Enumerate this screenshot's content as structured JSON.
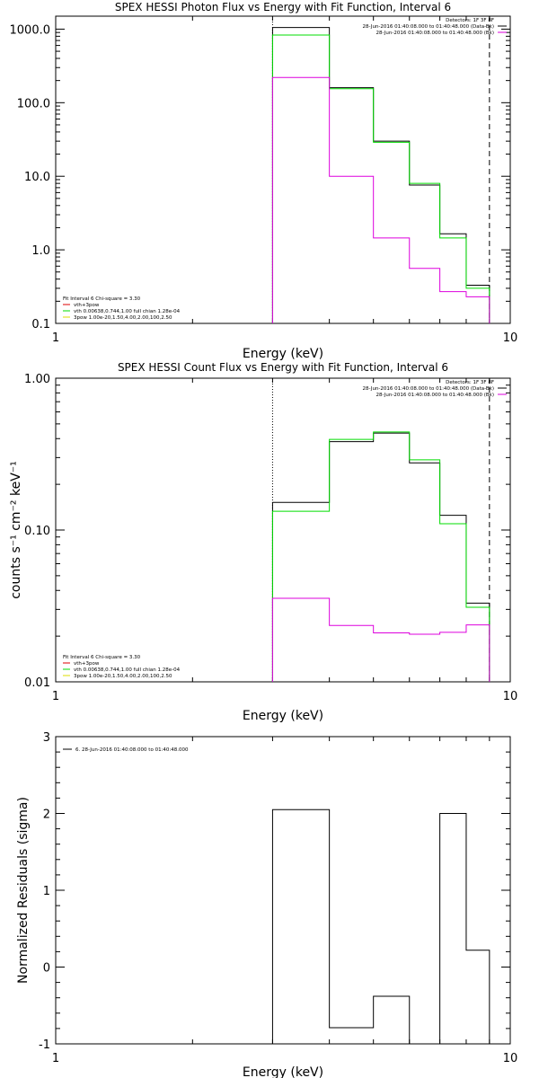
{
  "chart_data": [
    {
      "type": "line",
      "title": "SPEX HESSI Photon Flux vs Energy with Fit Function, Interval 6",
      "xlabel": "Energy (keV)",
      "ylabel": "",
      "xscale": "log",
      "yscale": "log",
      "xlim": [
        1,
        10
      ],
      "ylim": [
        0.1,
        1500
      ],
      "x_ticks": [
        {
          "v": 1,
          "label": "1"
        },
        {
          "v": 10,
          "label": "10"
        }
      ],
      "y_ticks": [
        {
          "v": 0.1,
          "label": "0.1"
        },
        {
          "v": 1,
          "label": "1.0"
        },
        {
          "v": 10,
          "label": "10.0"
        },
        {
          "v": 100,
          "label": "100.0"
        },
        {
          "v": 1000,
          "label": "1000.0"
        }
      ],
      "vlines": [
        {
          "x": 3.0,
          "style": "dotted"
        },
        {
          "x": 9.0,
          "style": "dashed"
        }
      ],
      "bin_edges": [
        3.0,
        4.0,
        5.0,
        6.0,
        7.0,
        8.0,
        9.0
      ],
      "series": [
        {
          "name": "",
          "color": "#000000",
          "values": [
            1050,
            160,
            30,
            7.6,
            1.65,
            0.33
          ]
        },
        {
          "name": "",
          "color": "#00dd00",
          "values": [
            830,
            155,
            29,
            8.0,
            1.45,
            0.3
          ]
        },
        {
          "name": "",
          "color": "#dd00dd",
          "values": [
            220,
            10,
            1.45,
            0.56,
            0.27,
            0.23
          ]
        }
      ],
      "legend_top": {
        "placement": "top-right",
        "header": "Detectors: 1F 3F 8F",
        "entries": [
          {
            "text": "28-Jun-2016 01:40:08.000 to 01:40:48.000 (Data-Bk)",
            "color": "#000000"
          },
          {
            "text": "28-Jun-2016 01:40:08.000 to 01:40:48.000 (Bk)",
            "color": "#dd00dd"
          }
        ]
      },
      "legend_bottom": {
        "placement": "bottom-left",
        "header": "Fit Interval 6   Chi-square = 3.30",
        "entries": [
          {
            "text": "vth+3pow",
            "color": "#dd0000"
          },
          {
            "text": "vth 0.00638,0.744,1.00  full chian 1.28e-04",
            "color": "#00dd00"
          },
          {
            "text": "3pow 1.00e-20,1.50,4.00,2.00,100,2.50",
            "color": "#dddd00"
          }
        ]
      }
    },
    {
      "type": "line",
      "title": "SPEX HESSI Count Flux vs Energy with Fit Function, Interval 6",
      "xlabel": "Energy (keV)",
      "ylabel": "counts s⁻¹ cm⁻² keV⁻¹",
      "xscale": "log",
      "yscale": "log",
      "xlim": [
        1,
        10
      ],
      "ylim": [
        0.01,
        1.0
      ],
      "x_ticks": [
        {
          "v": 1,
          "label": "1"
        },
        {
          "v": 10,
          "label": "10"
        }
      ],
      "y_ticks": [
        {
          "v": 0.01,
          "label": "0.01"
        },
        {
          "v": 0.1,
          "label": "0.10"
        },
        {
          "v": 1.0,
          "label": "1.00"
        }
      ],
      "vlines": [
        {
          "x": 3.0,
          "style": "dotted"
        },
        {
          "x": 9.0,
          "style": "dashed"
        }
      ],
      "bin_edges": [
        3.0,
        4.0,
        5.0,
        6.0,
        7.0,
        8.0,
        9.0
      ],
      "series": [
        {
          "name": "",
          "color": "#000000",
          "values": [
            0.152,
            0.382,
            0.435,
            0.277,
            0.125,
            0.033
          ]
        },
        {
          "name": "",
          "color": "#00dd00",
          "values": [
            0.133,
            0.395,
            0.442,
            0.29,
            0.11,
            0.031
          ]
        },
        {
          "name": "",
          "color": "#dd00dd",
          "values": [
            0.0355,
            0.0235,
            0.021,
            0.0206,
            0.0212,
            0.0237
          ]
        }
      ],
      "legend_top": {
        "placement": "top-right",
        "header": "Detectors: 1F 3F 8F",
        "entries": [
          {
            "text": "28-Jun-2016 01:40:08.000 to 01:40:48.000 (Data-Bk)",
            "color": "#000000"
          },
          {
            "text": "28-Jun-2016 01:40:08.000 to 01:40:48.000 (Bk)",
            "color": "#dd00dd"
          }
        ]
      },
      "legend_bottom": {
        "placement": "bottom-left",
        "header": "Fit Interval 6   Chi-square = 3.30",
        "entries": [
          {
            "text": "vth+3pow",
            "color": "#dd0000"
          },
          {
            "text": "vth 0.00638,0.744,1.00  full chian 1.28e-04",
            "color": "#00dd00"
          },
          {
            "text": "3pow 1.00e-20,1.50,4.00,2.00,100,2.50",
            "color": "#dddd00"
          }
        ]
      }
    },
    {
      "type": "line",
      "title": "",
      "xlabel": "Energy (keV)",
      "ylabel": "Normalized Residuals (sigma)",
      "xscale": "log",
      "yscale": "linear",
      "xlim": [
        1,
        10
      ],
      "ylim": [
        -1,
        3
      ],
      "x_ticks": [
        {
          "v": 1,
          "label": "1"
        },
        {
          "v": 10,
          "label": "10"
        }
      ],
      "y_ticks": [
        {
          "v": -1,
          "label": "-1"
        },
        {
          "v": 0,
          "label": "0"
        },
        {
          "v": 1,
          "label": "1"
        },
        {
          "v": 2,
          "label": "2"
        },
        {
          "v": 3,
          "label": "3"
        }
      ],
      "bin_edges": [
        3.0,
        4.0,
        5.0,
        6.0,
        7.0,
        8.0,
        9.0
      ],
      "series": [
        {
          "name": "",
          "color": "#000000",
          "values": [
            2.05,
            -0.79,
            -0.38,
            -1.02,
            2.0,
            0.22
          ]
        }
      ],
      "legend_top": {
        "placement": "top-left",
        "entries": [
          {
            "text": "6. 28-Jun-2016 01:40:08.000 to 01:40:48.000",
            "color": "#000000"
          }
        ]
      }
    }
  ]
}
